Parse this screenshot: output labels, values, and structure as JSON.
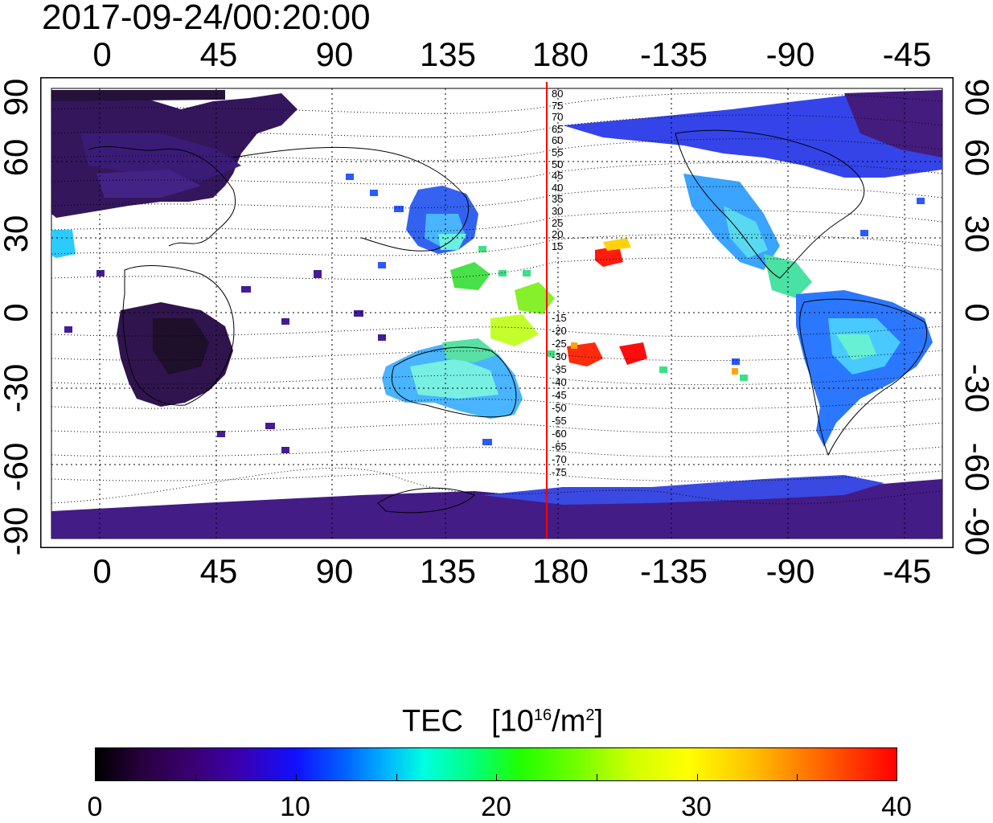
{
  "timestamp": "2017-09-24/00:20:00",
  "axes": {
    "longitude_labels": [
      "0",
      "45",
      "90",
      "135",
      "180",
      "-135",
      "-90",
      "-45"
    ],
    "latitude_labels_left": [
      "90",
      "60",
      "30",
      "0",
      "-30",
      "-60",
      "-90"
    ],
    "latitude_labels_right": [
      "90",
      "60",
      "30",
      "0",
      "-30",
      "-60",
      "-90"
    ]
  },
  "meridian_line": {
    "longitude": 175,
    "color": "#ff0000",
    "north_labels": [
      "80",
      "75",
      "70",
      "65",
      "60",
      "55",
      "50",
      "45",
      "40",
      "35",
      "30",
      "25",
      "20",
      "15"
    ],
    "south_labels": [
      "-15",
      "-20",
      "-25",
      "-30",
      "-35",
      "-40",
      "-45",
      "-50",
      "-55",
      "-60",
      "-65",
      "-70",
      "-75"
    ]
  },
  "colorbar": {
    "title": "TEC",
    "unit_text": "[10",
    "unit_sup": "16",
    "unit_mid": "/m",
    "unit_sup2": "2",
    "unit_end": "]",
    "labels": [
      "0",
      "10",
      "20",
      "30",
      "40"
    ],
    "min": 0,
    "max": 40
  }
}
